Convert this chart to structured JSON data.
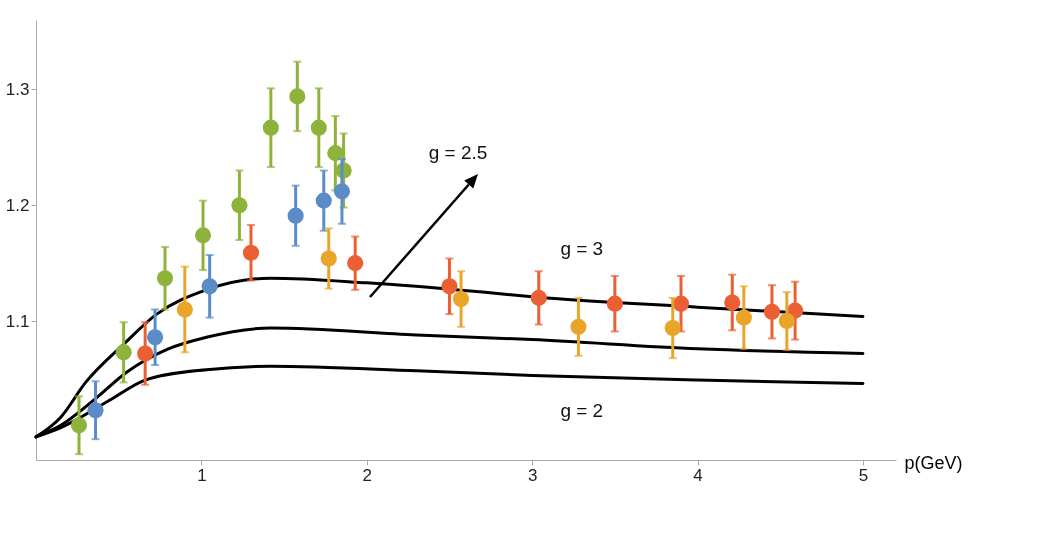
{
  "chart_data": {
    "type": "scatter",
    "xlabel": "p(GeV)",
    "xlim": [
      0,
      5.2
    ],
    "ylim": [
      0.98,
      1.36
    ],
    "xticks": [
      1,
      2,
      3,
      4,
      5
    ],
    "yticks": [
      1.1,
      1.2,
      1.3
    ],
    "grid": false,
    "marker": "circle",
    "series": [
      {
        "type": "line",
        "marker": "none",
        "color": "#000000",
        "x": [
          0,
          0.15,
          0.3,
          0.53,
          0.73,
          1.03,
          1.42,
          2.0,
          2.7,
          3,
          4,
          5
        ],
        "values": [
          1.0,
          1.017,
          1.047,
          1.08,
          1.106,
          1.127,
          1.137,
          1.133,
          1.125,
          1.121,
          1.112,
          1.104
        ]
      },
      {
        "type": "line",
        "marker": "none",
        "color": "#000000",
        "x": [
          0,
          0.15,
          0.36,
          0.55,
          0.8,
          1.03,
          1.42,
          2.3,
          3,
          4,
          5
        ],
        "values": [
          1.0,
          1.01,
          1.033,
          1.056,
          1.076,
          1.086,
          1.094,
          1.088,
          1.084,
          1.076,
          1.072
        ]
      },
      {
        "type": "line",
        "marker": "none",
        "color": "#000000",
        "x": [
          0,
          0.15,
          0.45,
          0.66,
          1.03,
          1.42,
          2.3,
          3,
          4,
          5
        ],
        "values": [
          1.0,
          1.008,
          1.032,
          1.049,
          1.058,
          1.061,
          1.057,
          1.053,
          1.049,
          1.046
        ]
      },
      {
        "color": "#8db33a",
        "x": [
          0.26,
          0.53,
          0.78,
          1.01,
          1.23,
          1.42,
          1.58,
          1.71,
          1.81,
          1.86
        ],
        "values": [
          1.01,
          1.073,
          1.137,
          1.174,
          1.2,
          1.267,
          1.294,
          1.267,
          1.245,
          1.23
        ],
        "errors": [
          0.025,
          0.026,
          0.027,
          0.03,
          0.03,
          0.034,
          0.03,
          0.034,
          0.032,
          0.032
        ]
      },
      {
        "color": "#5b8cc8",
        "x": [
          0.36,
          0.72,
          1.05,
          1.57,
          1.74,
          1.85
        ],
        "values": [
          1.023,
          1.086,
          1.13,
          1.191,
          1.204,
          1.212
        ],
        "errors": [
          0.025,
          0.024,
          0.027,
          0.026,
          0.026,
          0.028
        ]
      },
      {
        "color": "#ec5f33",
        "x": [
          0.66,
          1.3,
          1.93,
          2.5,
          3.04,
          3.5,
          3.9,
          4.21,
          4.45,
          4.59
        ],
        "values": [
          1.072,
          1.159,
          1.15,
          1.13,
          1.12,
          1.115,
          1.115,
          1.116,
          1.108,
          1.109
        ],
        "errors": [
          0.027,
          0.024,
          0.023,
          0.024,
          0.023,
          0.024,
          0.024,
          0.024,
          0.023,
          0.025
        ]
      },
      {
        "color": "#e9a52a",
        "x": [
          0.9,
          1.77,
          2.57,
          3.28,
          3.85,
          4.28,
          4.54
        ],
        "values": [
          1.11,
          1.154,
          1.119,
          1.095,
          1.094,
          1.103,
          1.1
        ],
        "errors": [
          0.037,
          0.026,
          0.024,
          0.025,
          0.026,
          0.027,
          0.025
        ]
      }
    ],
    "annotations": [
      "g = 2.5",
      {
        "text": "g = 3",
        "x": 3.3,
        "y": 1.118
      },
      {
        "text": "g = 2",
        "x": 3.3,
        "y": 1.052
      }
    ]
  }
}
